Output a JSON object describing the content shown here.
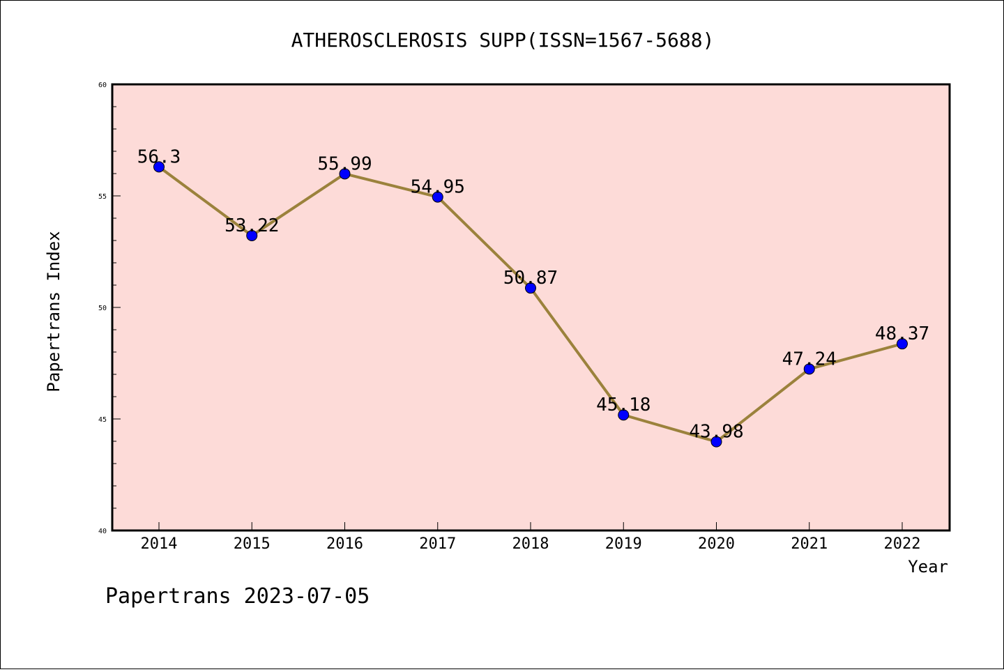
{
  "chart_data": {
    "type": "line",
    "title": "ATHEROSCLEROSIS SUPP(ISSN=1567-5688)",
    "xlabel": "Year",
    "ylabel": "Papertrans Index",
    "categories": [
      "2014",
      "2015",
      "2016",
      "2017",
      "2018",
      "2019",
      "2020",
      "2021",
      "2022"
    ],
    "series": [
      {
        "values": [
          56.3,
          53.22,
          55.99,
          54.95,
          50.87,
          45.18,
          43.98,
          47.24,
          48.37
        ],
        "labels": [
          "56.3",
          "53.22",
          "55.99",
          "54.95",
          "50.87",
          "45.18",
          "43.98",
          "47.24",
          "48.37"
        ]
      }
    ],
    "ylim": [
      40,
      60
    ],
    "yticks": [
      "40",
      "45",
      "50",
      "55",
      "60"
    ],
    "grid": false,
    "legend": "none",
    "colors": {
      "plot_background": "#fddbd8",
      "line": "#9b823c",
      "marker": "#0000ff"
    }
  },
  "footer": "Papertrans 2023-07-05"
}
